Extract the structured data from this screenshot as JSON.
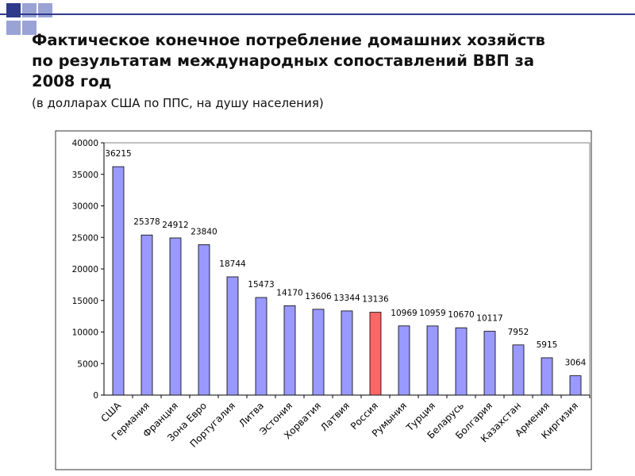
{
  "title": "Фактическое конечное потребление домашних хозяйств\nпо результатам международных сопоставлений ВВП за\n2008 год",
  "subtitle": "(в долларах США по ППС, на душу населения)",
  "colors": {
    "bar": "#9999ff",
    "highlight": "#ff6666",
    "deco_dark": "#2e3a8c",
    "deco_light": "#9aa3d6"
  },
  "chart_data": {
    "type": "bar",
    "title": "",
    "xlabel": "",
    "ylabel": "",
    "ylim": [
      0,
      40000
    ],
    "yticks": [
      0,
      5000,
      10000,
      15000,
      20000,
      25000,
      30000,
      35000,
      40000
    ],
    "grid": false,
    "legend": "none",
    "categories": [
      "США",
      "Германия",
      "Франция",
      "Зона Евро",
      "Португалия",
      "Литва",
      "Эстония",
      "Хорватия",
      "Латвия",
      "Россия",
      "Румыния",
      "Турция",
      "Беларусь",
      "Болгария",
      "Казахстан",
      "Армения",
      "Киргизия"
    ],
    "values": [
      36215,
      25378,
      24912,
      23840,
      18744,
      15473,
      14170,
      13606,
      13344,
      13136,
      10969,
      10959,
      10670,
      10117,
      7952,
      5915,
      3064
    ],
    "highlight_category": "Россия"
  }
}
